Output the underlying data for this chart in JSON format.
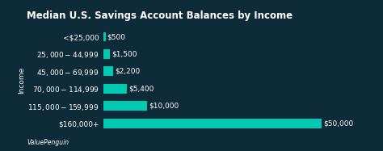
{
  "title": "Median U.S. Savings Account Balances by Income",
  "categories": [
    "<$25,000",
    "$25,000 - $44,999",
    "$45,000 - $69,999",
    "$70,000 - $114,999",
    "$115,000 - $159,999",
    "$160,000+"
  ],
  "values": [
    500,
    1500,
    2200,
    5400,
    10000,
    50000
  ],
  "labels": [
    "$500",
    "$1,500",
    "$2,200",
    "$5,400",
    "$10,000",
    "$50,000"
  ],
  "bar_color": "#00c9b1",
  "background_color": "#0d2b38",
  "text_color": "#ffffff",
  "ylabel": "Income",
  "watermark": "ValuePenguin",
  "title_fontsize": 8.5,
  "label_fontsize": 6.5,
  "tick_fontsize": 6.5,
  "ylabel_fontsize": 6.5,
  "xlim": [
    0,
    57000
  ]
}
